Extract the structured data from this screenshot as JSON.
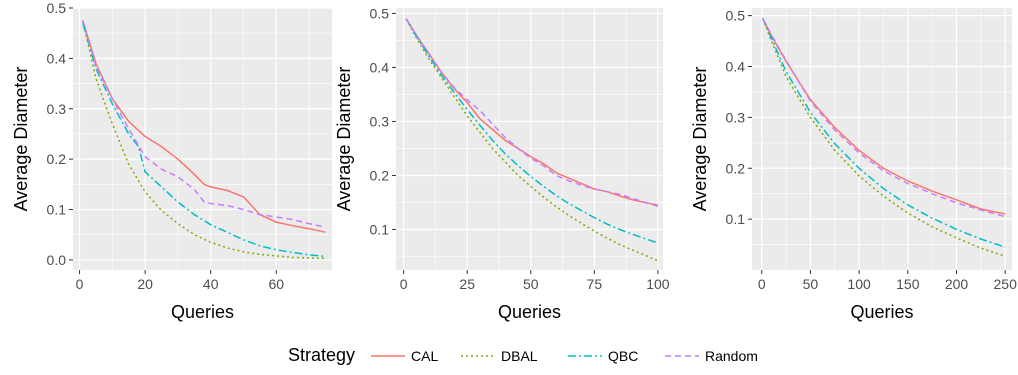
{
  "chart_data": [
    {
      "type": "line",
      "xlabel": "Queries",
      "ylabel": "Average Diameter",
      "xlim": [
        -2,
        77
      ],
      "ylim": [
        -0.02,
        0.5
      ],
      "xticks": [
        0,
        20,
        40,
        60
      ],
      "yticks": [
        0.0,
        0.1,
        0.2,
        0.3,
        0.4,
        0.5
      ],
      "ytick_labels": [
        "0.0",
        "0.1",
        "0.2",
        "0.3",
        "0.4",
        "0.5"
      ],
      "grid": true,
      "series": [
        {
          "name": "CAL",
          "x": [
            1,
            5,
            10,
            15,
            20,
            25,
            30,
            35,
            38,
            40,
            45,
            50,
            55,
            60,
            65,
            70,
            75
          ],
          "y": [
            0.475,
            0.39,
            0.32,
            0.275,
            0.245,
            0.225,
            0.2,
            0.17,
            0.15,
            0.145,
            0.138,
            0.125,
            0.09,
            0.075,
            0.068,
            0.062,
            0.055
          ]
        },
        {
          "name": "DBAL",
          "x": [
            1,
            5,
            10,
            15,
            20,
            25,
            30,
            35,
            40,
            45,
            50,
            55,
            60,
            65,
            70,
            75
          ],
          "y": [
            0.475,
            0.36,
            0.27,
            0.19,
            0.135,
            0.098,
            0.072,
            0.05,
            0.035,
            0.024,
            0.016,
            0.011,
            0.008,
            0.005,
            0.004,
            0.003
          ]
        },
        {
          "name": "QBC",
          "x": [
            1,
            5,
            10,
            15,
            18,
            20,
            25,
            30,
            35,
            40,
            45,
            50,
            55,
            60,
            65,
            70,
            75
          ],
          "y": [
            0.47,
            0.38,
            0.31,
            0.25,
            0.225,
            0.175,
            0.145,
            0.115,
            0.09,
            0.07,
            0.055,
            0.04,
            0.028,
            0.02,
            0.015,
            0.01,
            0.007
          ]
        },
        {
          "name": "Random",
          "x": [
            1,
            5,
            10,
            15,
            20,
            22,
            25,
            30,
            35,
            38,
            40,
            45,
            50,
            55,
            60,
            65,
            70,
            75
          ],
          "y": [
            0.475,
            0.385,
            0.32,
            0.26,
            0.205,
            0.195,
            0.18,
            0.165,
            0.14,
            0.115,
            0.112,
            0.108,
            0.1,
            0.09,
            0.085,
            0.08,
            0.072,
            0.065
          ]
        }
      ]
    },
    {
      "type": "line",
      "xlabel": "Queries",
      "ylabel": "Average Diameter",
      "xlim": [
        -3,
        102
      ],
      "ylim": [
        0.025,
        0.51
      ],
      "xticks": [
        0,
        25,
        50,
        75,
        100
      ],
      "yticks": [
        0.1,
        0.2,
        0.3,
        0.4,
        0.5
      ],
      "ytick_labels": [
        "0.1",
        "0.2",
        "0.3",
        "0.4",
        "0.5"
      ],
      "grid": true,
      "series": [
        {
          "name": "CAL",
          "x": [
            1,
            5,
            10,
            15,
            20,
            25,
            30,
            35,
            40,
            45,
            50,
            55,
            60,
            65,
            70,
            75,
            80,
            85,
            90,
            95,
            100
          ],
          "y": [
            0.49,
            0.46,
            0.425,
            0.39,
            0.36,
            0.335,
            0.305,
            0.285,
            0.265,
            0.25,
            0.235,
            0.222,
            0.205,
            0.195,
            0.185,
            0.175,
            0.17,
            0.162,
            0.155,
            0.15,
            0.145
          ]
        },
        {
          "name": "DBAL",
          "x": [
            1,
            5,
            10,
            15,
            20,
            25,
            30,
            35,
            40,
            45,
            50,
            55,
            60,
            65,
            70,
            75,
            80,
            85,
            90,
            95,
            100
          ],
          "y": [
            0.49,
            0.455,
            0.415,
            0.38,
            0.345,
            0.31,
            0.28,
            0.25,
            0.225,
            0.2,
            0.18,
            0.16,
            0.142,
            0.126,
            0.111,
            0.097,
            0.084,
            0.072,
            0.062,
            0.052,
            0.042
          ]
        },
        {
          "name": "QBC",
          "x": [
            1,
            5,
            10,
            15,
            20,
            25,
            30,
            35,
            40,
            45,
            50,
            55,
            60,
            65,
            70,
            75,
            80,
            85,
            90,
            95,
            100
          ],
          "y": [
            0.49,
            0.458,
            0.42,
            0.385,
            0.353,
            0.322,
            0.293,
            0.265,
            0.24,
            0.218,
            0.198,
            0.18,
            0.163,
            0.148,
            0.135,
            0.122,
            0.11,
            0.1,
            0.091,
            0.083,
            0.075
          ]
        },
        {
          "name": "Random",
          "x": [
            1,
            5,
            10,
            15,
            20,
            25,
            30,
            35,
            40,
            45,
            50,
            55,
            60,
            65,
            70,
            75,
            80,
            85,
            90,
            95,
            100
          ],
          "y": [
            0.49,
            0.46,
            0.425,
            0.39,
            0.362,
            0.34,
            0.32,
            0.295,
            0.27,
            0.25,
            0.232,
            0.218,
            0.2,
            0.19,
            0.182,
            0.175,
            0.17,
            0.165,
            0.158,
            0.15,
            0.143
          ]
        }
      ]
    },
    {
      "type": "line",
      "xlabel": "Queries",
      "ylabel": "Average Diameter",
      "xlim": [
        -10,
        257
      ],
      "ylim": [
        0.0,
        0.515
      ],
      "xticks": [
        0,
        50,
        100,
        150,
        200,
        250
      ],
      "yticks": [
        0.1,
        0.2,
        0.3,
        0.4,
        0.5
      ],
      "ytick_labels": [
        "0.1",
        "0.2",
        "0.3",
        "0.4",
        "0.5"
      ],
      "grid": true,
      "series": [
        {
          "name": "CAL",
          "x": [
            1,
            10,
            25,
            50,
            75,
            100,
            125,
            150,
            175,
            200,
            225,
            250
          ],
          "y": [
            0.495,
            0.46,
            0.41,
            0.335,
            0.28,
            0.235,
            0.2,
            0.175,
            0.155,
            0.138,
            0.12,
            0.11
          ]
        },
        {
          "name": "DBAL",
          "x": [
            1,
            10,
            25,
            50,
            75,
            100,
            125,
            150,
            175,
            200,
            225,
            250
          ],
          "y": [
            0.495,
            0.45,
            0.38,
            0.3,
            0.235,
            0.185,
            0.145,
            0.112,
            0.085,
            0.063,
            0.043,
            0.027
          ]
        },
        {
          "name": "QBC",
          "x": [
            1,
            10,
            25,
            50,
            75,
            100,
            125,
            150,
            175,
            200,
            225,
            250
          ],
          "y": [
            0.495,
            0.455,
            0.39,
            0.31,
            0.248,
            0.2,
            0.16,
            0.128,
            0.102,
            0.08,
            0.061,
            0.045
          ]
        },
        {
          "name": "Random",
          "x": [
            1,
            10,
            25,
            50,
            75,
            100,
            125,
            150,
            175,
            200,
            225,
            250
          ],
          "y": [
            0.495,
            0.462,
            0.412,
            0.332,
            0.275,
            0.23,
            0.195,
            0.17,
            0.15,
            0.132,
            0.118,
            0.105
          ]
        }
      ]
    }
  ],
  "legend": {
    "title": "Strategy",
    "position": "bottom",
    "entries": [
      {
        "name": "CAL",
        "color": "#F8766D",
        "dash": "solid"
      },
      {
        "name": "DBAL",
        "color": "#7CAE00",
        "dash": "dotted"
      },
      {
        "name": "QBC",
        "color": "#00BFC4",
        "dash": "dashdot"
      },
      {
        "name": "Random",
        "color": "#C77CFF",
        "dash": "dashed"
      }
    ]
  },
  "colors": {
    "panel_background": "#EBEBEB",
    "grid": "#FFFFFF"
  }
}
